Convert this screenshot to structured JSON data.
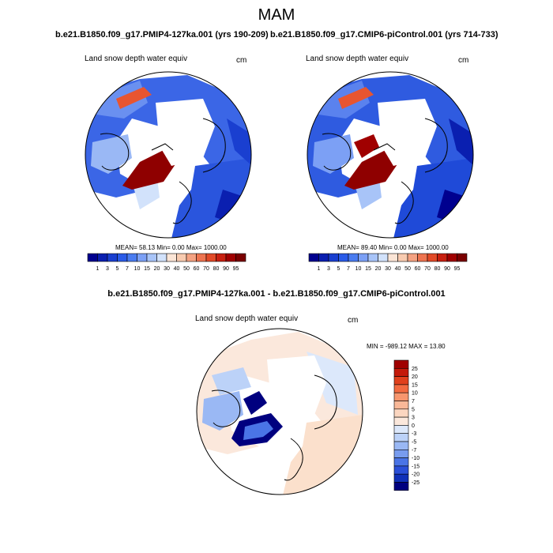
{
  "title": "MAM",
  "panels": [
    {
      "run_title": "b.e21.B1850.f09_g17.PMIP4-127ka.001 (yrs 190-209)",
      "variable": "Land snow depth water equiv",
      "units": "cm",
      "stats": "MEAN= 58.13 Min= 0.00 Max= 1000.00"
    },
    {
      "run_title": "b.e21.B1850.f09_g17.CMIP6-piControl.001 (yrs 714-733)",
      "variable": "Land snow depth water equiv",
      "units": "cm",
      "stats": "MEAN= 89.40 Min= 0.00 Max= 1000.00"
    }
  ],
  "difference_panel": {
    "title": "b.e21.B1850.f09_g17.PMIP4-127ka.001 - b.e21.B1850.f09_g17.CMIP6-piControl.001",
    "variable": "Land snow depth water equiv",
    "units": "cm",
    "stats": "MIN = -989.12 MAX = 13.80"
  },
  "colorbar_abs": {
    "labels": [
      "1",
      "3",
      "5",
      "7",
      "10",
      "15",
      "20",
      "30",
      "40",
      "50",
      "60",
      "70",
      "80",
      "90",
      "95"
    ],
    "colors": [
      "#00008f",
      "#0a1fb0",
      "#1a3fd0",
      "#2a5be8",
      "#4a7cf0",
      "#7ca0f5",
      "#a8c4f8",
      "#d2e2fb",
      "#fbe5d6",
      "#f8cbb0",
      "#f4a282",
      "#ee7450",
      "#e24a28",
      "#c82010",
      "#a00000",
      "#7a0000"
    ]
  },
  "colorbar_diff": {
    "labels": [
      "25",
      "20",
      "15",
      "10",
      "7",
      "5",
      "3",
      "0",
      "-3",
      "-5",
      "-7",
      "-10",
      "-15",
      "-20",
      "-25"
    ],
    "colors": [
      "#a00000",
      "#c41a0a",
      "#e0401c",
      "#f26a40",
      "#f7966e",
      "#f9b898",
      "#fbd6c0",
      "#fbe8dc",
      "#dce8fb",
      "#bcd2f8",
      "#9ab8f4",
      "#789cef",
      "#4a74e6",
      "#2a4fd8",
      "#1030b8",
      "#00007f"
    ]
  }
}
